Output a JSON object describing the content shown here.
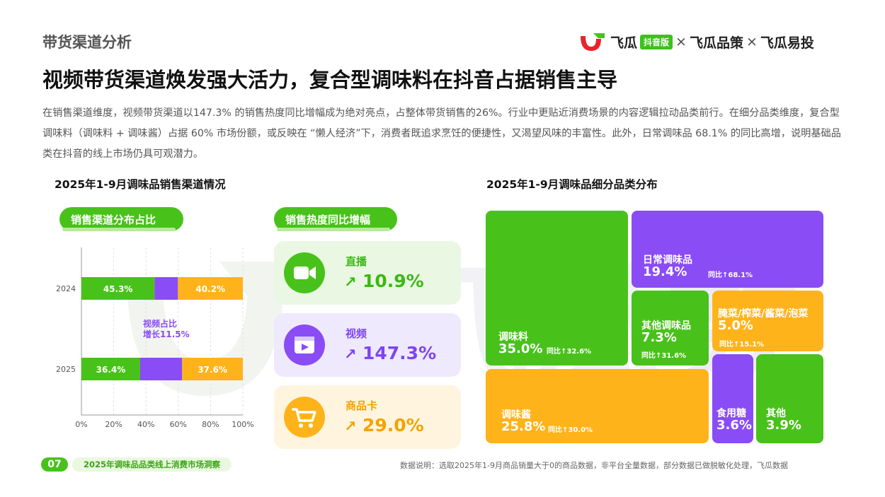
{
  "header": {
    "section_label": "带货渠道分析",
    "brand_name_1": "飞瓜",
    "brand_badge": "抖音版",
    "brand_sep_1": "×",
    "brand_name_2": "飞瓜品策",
    "brand_sep_2": "×",
    "brand_name_3": "飞瓜易投"
  },
  "title": "视频带货渠道焕发强大活力，复合型调味料在抖音占据销售主导",
  "intro": "在销售渠道维度，视频带货渠道以147.3% 的销售热度同比增幅成为绝对亮点，占整体带货销售的26%。行业中更贴近消费场景的内容逻辑拉动品类前行。在细分品类维度，复合型调味料（调味料 + 调味酱）占据 60% 市场份额，或反映在 “懒人经济”下，消费者既追求烹饪的便捷性，又渴望风味的丰富性。此外，日常调味品 68.1% 的同比高增，说明基础品类在抖音的线上市场仍具可观潜力。",
  "left_section": {
    "title": "2025年1-9月调味品销售渠道情况",
    "pill_share": "销售渠道分布占比",
    "pill_growth": "销售热度同比增幅",
    "note_line1": "视频占比",
    "note_line2": "增长11.5%"
  },
  "right_section": {
    "title": "2025年1-9月调味品细分品类分布"
  },
  "chart_data": [
    {
      "type": "bar",
      "orientation": "horizontal",
      "stacked": true,
      "categories": [
        "2024",
        "2025"
      ],
      "series": [
        {
          "values": [
            45.3,
            36.4
          ],
          "labels": [
            "45.3%",
            "36.4%"
          ],
          "color": "#48c21a"
        },
        {
          "values": [
            14.5,
            26.0
          ],
          "labels": [
            "",
            ""
          ],
          "color": "#8a4cf5"
        },
        {
          "values": [
            40.2,
            37.6
          ],
          "labels": [
            "40.2%",
            "37.6%"
          ],
          "color": "#ffb31a"
        }
      ],
      "xlim": [
        0,
        100
      ],
      "xticks": [
        "0%",
        "20%",
        "40%",
        "60%",
        "80%",
        "100%"
      ],
      "grid": "vertical dashed"
    },
    {
      "type": "bar",
      "title": "销售热度同比增幅",
      "items": [
        {
          "name": "直播",
          "value": 10.9,
          "label": "10.9%",
          "arrow": "↗",
          "color": "#3cb815",
          "bg": "#eaf8e3",
          "icon": "video-camera-icon"
        },
        {
          "name": "视频",
          "value": 147.3,
          "label": "147.3%",
          "arrow": "↗",
          "color": "#7d45f0",
          "bg": "#efe9fd",
          "icon": "film-icon"
        },
        {
          "name": "商品卡",
          "value": 29.0,
          "label": "29.0%",
          "arrow": "↗",
          "color": "#f5a300",
          "bg": "#fff5df",
          "icon": "shopping-cart-icon"
        }
      ]
    },
    {
      "type": "treemap",
      "items": [
        {
          "name": "调味料",
          "share": 35.0,
          "share_label": "35.0%",
          "growth": "同比↑32.6%",
          "color": "#48c21a"
        },
        {
          "name": "日常调味品",
          "share": 19.4,
          "share_label": "19.4%",
          "growth": "同比↑68.1%",
          "color": "#8a4cf5"
        },
        {
          "name": "其他调味品",
          "share": 7.3,
          "share_label": "7.3%",
          "growth": "同比↑31.6%",
          "color": "#48c21a"
        },
        {
          "name": "腌菜/榨菜/酱菜/泡菜",
          "share": 5.0,
          "share_label": "5.0%",
          "growth": "同比↑15.1%",
          "color": "#ffb31a"
        },
        {
          "name": "调味酱",
          "share": 25.8,
          "share_label": "25.8%",
          "growth": "同比↑30.0%",
          "color": "#ffb31a"
        },
        {
          "name": "食用糖",
          "share": 3.6,
          "share_label": "3.6%",
          "growth": "",
          "color": "#8a4cf5"
        },
        {
          "name": "其他",
          "share": 3.9,
          "share_label": "3.9%",
          "growth": "",
          "color": "#48c21a"
        }
      ]
    }
  ],
  "footer": {
    "page_number": "07",
    "report_title": "2025年调味品品类线上消费市场洞察",
    "source": "数据说明：选取2025年1-9月商品销量大于0的商品数据，非平台全量数据，部分数据已做脱敏化处理，飞瓜数据"
  }
}
